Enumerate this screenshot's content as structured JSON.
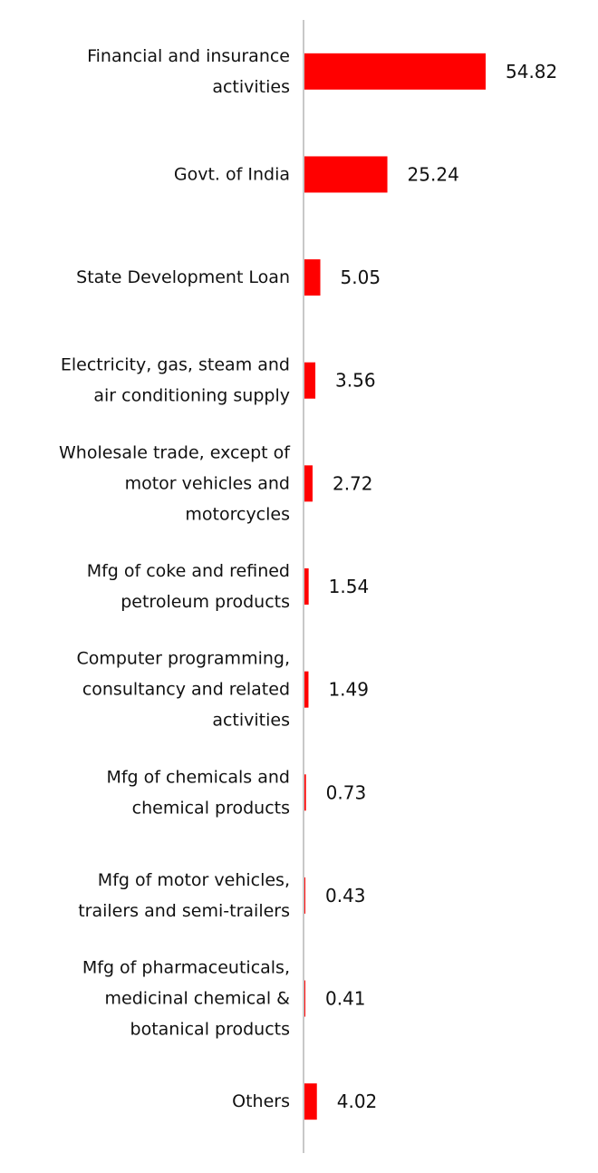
{
  "chart_data": {
    "type": "bar",
    "orientation": "horizontal",
    "title": "",
    "xlabel": "",
    "ylabel": "",
    "grid": false,
    "legend": "none",
    "bar_color": "#ff0000",
    "axis_color": "#c8c8c8",
    "xlim": [
      0,
      60
    ],
    "categories": [
      [
        "Financial and insurance",
        "activities"
      ],
      [
        "Govt. of India"
      ],
      [
        "State Development Loan"
      ],
      [
        "Electricity, gas, steam and",
        "air conditioning supply"
      ],
      [
        "Wholesale trade, except of",
        "motor vehicles and",
        "motorcycles"
      ],
      [
        "Mfg of coke and refined",
        "petroleum products"
      ],
      [
        "Computer programming,",
        "consultancy and related",
        "activities"
      ],
      [
        "Mfg of chemicals and",
        "chemical products"
      ],
      [
        "Mfg of motor vehicles,",
        "trailers and semi-trailers"
      ],
      [
        "Mfg of pharmaceuticals,",
        "medicinal chemical &",
        "botanical products"
      ],
      [
        "Others"
      ]
    ],
    "values": [
      54.82,
      25.24,
      5.05,
      3.56,
      2.72,
      1.54,
      1.49,
      0.73,
      0.43,
      0.41,
      4.02
    ],
    "value_labels": [
      "54.82",
      "25.24",
      "5.05",
      "3.56",
      "2.72",
      "1.54",
      "1.49",
      "0.73",
      "0.43",
      "0.41",
      "4.02"
    ]
  }
}
